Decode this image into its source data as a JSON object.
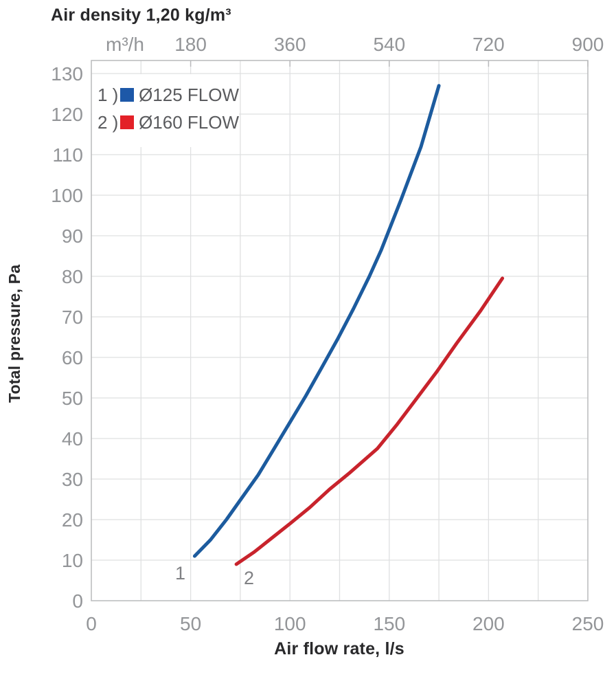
{
  "title": "Air density 1,20 kg/m³",
  "axes": {
    "top": {
      "unit_label": "m³/h",
      "ticks": [
        180,
        360,
        540,
        720,
        900
      ]
    },
    "bottom": {
      "title": "Air flow rate, l/s",
      "ticks": [
        0,
        50,
        100,
        150,
        200,
        250
      ]
    },
    "left": {
      "title": "Total pressure, Pa",
      "ticks": [
        0,
        10,
        20,
        30,
        40,
        50,
        60,
        70,
        80,
        90,
        100,
        110,
        120,
        130
      ]
    }
  },
  "legend": {
    "items": [
      {
        "index_label": "1 )",
        "label": "Ø125 FLOW",
        "color": "#1d58a8"
      },
      {
        "index_label": "2 )",
        "label": "Ø160 FLOW",
        "color": "#e32128"
      }
    ]
  },
  "chart_data": {
    "type": "line",
    "title": "Air density 1,20 kg/m³",
    "xlabel": "Air flow rate, l/s",
    "xlabel_secondary_unit": "m³/h",
    "ylabel": "Total pressure, Pa",
    "xlim_ls": [
      0,
      250
    ],
    "xlim_m3h": [
      0,
      900
    ],
    "ylim_pa": [
      0,
      133
    ],
    "x_ticks_ls": [
      0,
      50,
      100,
      150,
      200,
      250
    ],
    "x_ticks_m3h": [
      180,
      360,
      540,
      720,
      900
    ],
    "y_ticks_pa": [
      0,
      10,
      20,
      30,
      40,
      50,
      60,
      70,
      80,
      90,
      100,
      110,
      120,
      130
    ],
    "grid": {
      "x_step_ls": 25,
      "y_step_pa": 10,
      "visible": true
    },
    "legend_position": "top-left",
    "series": [
      {
        "name": "Ø125 FLOW",
        "curve_label": "1",
        "color": "#1c5b9e",
        "points_ls_pa": [
          [
            52,
            11
          ],
          [
            60,
            15
          ],
          [
            68,
            20
          ],
          [
            76,
            25.5
          ],
          [
            84,
            31
          ],
          [
            92,
            37.5
          ],
          [
            100,
            44
          ],
          [
            108,
            50.5
          ],
          [
            116,
            57.5
          ],
          [
            124,
            64.5
          ],
          [
            132,
            72
          ],
          [
            140,
            80
          ],
          [
            146,
            86.5
          ],
          [
            156,
            99
          ],
          [
            166,
            112
          ],
          [
            175,
            127
          ]
        ]
      },
      {
        "name": "Ø160 FLOW",
        "curve_label": "2",
        "color": "#c8232c",
        "points_ls_pa": [
          [
            73,
            9
          ],
          [
            82,
            12
          ],
          [
            91,
            15.5
          ],
          [
            100,
            19
          ],
          [
            110,
            23
          ],
          [
            120,
            27.5
          ],
          [
            130,
            31.5
          ],
          [
            144,
            37.5
          ],
          [
            154,
            43.5
          ],
          [
            164,
            50
          ],
          [
            174,
            56.5
          ],
          [
            184,
            63.5
          ],
          [
            196,
            71.5
          ],
          [
            207,
            79.5
          ]
        ]
      }
    ]
  },
  "colors": {
    "background": "#ffffff",
    "grid_line": "#dfe0e1",
    "axis_line": "#b9babc",
    "tick_text": "#939598",
    "title_text": "#29292b",
    "legend_text": "#5a5b5e",
    "curve_point_label_text": "#808184"
  }
}
